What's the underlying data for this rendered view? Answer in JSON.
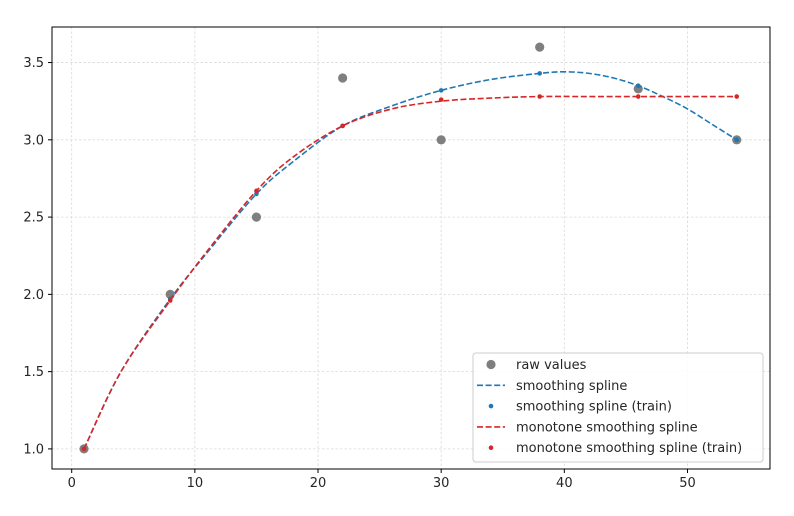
{
  "chart_data": {
    "type": "line",
    "title": "",
    "xlabel": "",
    "ylabel": "",
    "xlim": [
      -1.6,
      56.7
    ],
    "ylim": [
      0.87,
      3.73
    ],
    "xticks": [
      0,
      10,
      20,
      30,
      40,
      50
    ],
    "yticks": [
      1.0,
      1.5,
      2.0,
      2.5,
      3.0,
      3.5
    ],
    "xtick_labels": [
      "0",
      "10",
      "20",
      "30",
      "40",
      "50"
    ],
    "ytick_labels": [
      "1.0",
      "1.5",
      "2.0",
      "2.5",
      "3.0",
      "3.5"
    ],
    "grid": true,
    "legend_position": "lower-right",
    "series": [
      {
        "name": "raw values",
        "kind": "scatter",
        "color": "#7f7f7f",
        "x": [
          1,
          8,
          15,
          22,
          30,
          38,
          46,
          54
        ],
        "y": [
          1.0,
          2.0,
          2.5,
          3.4,
          3.0,
          3.6,
          3.33,
          3.0
        ]
      },
      {
        "name": "smoothing spline",
        "kind": "dashed-line",
        "color": "#1f77b4",
        "x": [
          1,
          4,
          8,
          11,
          15,
          18,
          22,
          26,
          30,
          34,
          38,
          40,
          42,
          44,
          46,
          48,
          50,
          52,
          54
        ],
        "y": [
          1.0,
          1.5,
          1.97,
          2.27,
          2.65,
          2.86,
          3.09,
          3.22,
          3.32,
          3.39,
          3.43,
          3.44,
          3.43,
          3.4,
          3.35,
          3.28,
          3.2,
          3.1,
          3.0
        ]
      },
      {
        "name": "smoothing spline (train)",
        "kind": "small-scatter",
        "color": "#1f77b4",
        "x": [
          1,
          8,
          15,
          22,
          30,
          38,
          46,
          54
        ],
        "y": [
          1.0,
          1.97,
          2.65,
          3.09,
          3.32,
          3.43,
          3.35,
          3.0
        ]
      },
      {
        "name": "monotone smoothing spline",
        "kind": "dashed-line",
        "color": "#d62728",
        "x": [
          1,
          4,
          8,
          11,
          15,
          18,
          22,
          26,
          30,
          34,
          38,
          42,
          46,
          50,
          54
        ],
        "y": [
          1.0,
          1.5,
          1.96,
          2.28,
          2.67,
          2.89,
          3.09,
          3.2,
          3.25,
          3.27,
          3.28,
          3.28,
          3.28,
          3.28,
          3.28
        ]
      },
      {
        "name": "monotone smoothing spline (train)",
        "kind": "small-scatter",
        "color": "#d62728",
        "x": [
          1,
          8,
          15,
          22,
          30,
          38,
          46,
          54
        ],
        "y": [
          1.0,
          1.96,
          2.67,
          3.09,
          3.26,
          3.28,
          3.28,
          3.28
        ]
      }
    ]
  }
}
